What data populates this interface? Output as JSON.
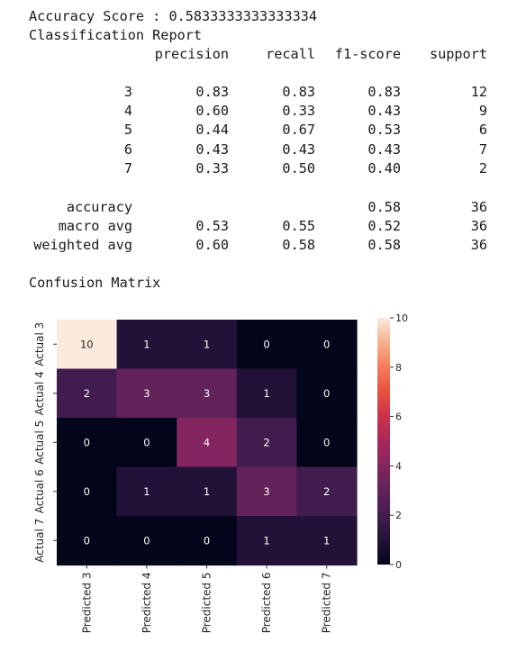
{
  "accuracy_line": "Accuracy Score : 0.5833333333333334",
  "report_title": "Classification Report",
  "report_headers": [
    "precision",
    "recall",
    "f1-score",
    "support"
  ],
  "report_rows": [
    {
      "label": "3",
      "precision": "0.83",
      "recall": "0.83",
      "f1": "0.83",
      "support": "12"
    },
    {
      "label": "4",
      "precision": "0.60",
      "recall": "0.33",
      "f1": "0.43",
      "support": "9"
    },
    {
      "label": "5",
      "precision": "0.44",
      "recall": "0.67",
      "f1": "0.53",
      "support": "6"
    },
    {
      "label": "6",
      "precision": "0.43",
      "recall": "0.43",
      "f1": "0.43",
      "support": "7"
    },
    {
      "label": "7",
      "precision": "0.33",
      "recall": "0.50",
      "f1": "0.40",
      "support": "2"
    }
  ],
  "report_summary": [
    {
      "label": "accuracy",
      "precision": "",
      "recall": "",
      "f1": "0.58",
      "support": "36"
    },
    {
      "label": "macro avg",
      "precision": "0.53",
      "recall": "0.55",
      "f1": "0.52",
      "support": "36"
    },
    {
      "label": "weighted avg",
      "precision": "0.60",
      "recall": "0.58",
      "f1": "0.58",
      "support": "36"
    }
  ],
  "matrix_title": "Confusion Matrix",
  "chart_data": {
    "type": "heatmap",
    "title": "",
    "x_labels": [
      "Predicted 3",
      "Predicted 4",
      "Predicted 5",
      "Predicted 6",
      "Predicted 7"
    ],
    "y_labels": [
      "Actual 3",
      "Actual 4",
      "Actual 5",
      "Actual 6",
      "Actual 7"
    ],
    "values": [
      [
        10,
        1,
        1,
        0,
        0
      ],
      [
        2,
        3,
        3,
        1,
        0
      ],
      [
        0,
        0,
        4,
        2,
        0
      ],
      [
        0,
        1,
        1,
        3,
        2
      ],
      [
        0,
        0,
        0,
        1,
        1
      ]
    ],
    "colorbar": {
      "min": 0,
      "max": 10,
      "ticks": [
        0,
        2,
        4,
        6,
        8,
        10
      ]
    },
    "colormap": "rocket"
  }
}
